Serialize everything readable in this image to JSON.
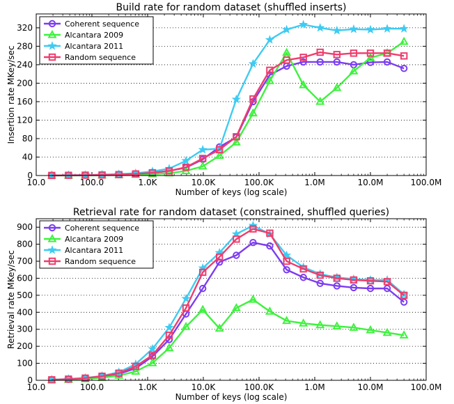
{
  "chart_data": [
    {
      "type": "line",
      "title": "Build rate for random dataset (shuffled inserts)",
      "xlabel": "Number of keys (log scale)",
      "ylabel": "Insertion rate MKey/sec",
      "xscale": "log",
      "xlim": [
        10,
        100000000
      ],
      "ylim": [
        0,
        350
      ],
      "xticks": [
        10,
        100,
        1000,
        10000,
        100000,
        1000000,
        10000000,
        100000000
      ],
      "xtick_labels": [
        "10.0",
        "100.0",
        "1.0K",
        "10.0K",
        "100.0K",
        "1.0M",
        "10.0M",
        "100.0M"
      ],
      "yticks": [
        0,
        40,
        80,
        120,
        160,
        200,
        240,
        280,
        320
      ],
      "ytick_labels": [
        "0",
        "40",
        "80",
        "120",
        "160",
        "200",
        "240",
        "280",
        "320"
      ],
      "grid": "horizontal dotted",
      "legend_position": "top-left",
      "x": [
        19,
        38,
        76,
        152,
        305,
        610,
        1220,
        2440,
        4880,
        9770,
        19500,
        39100,
        78100,
        156000,
        313000,
        625000,
        1250000,
        2500000,
        5000000,
        10000000,
        20000000,
        40000000
      ],
      "series": [
        {
          "name": "Coherent sequence",
          "color": "#7b3cf0",
          "marker": "circle",
          "values": [
            0.2,
            0.4,
            0.6,
            1,
            2,
            3.5,
            6,
            10,
            17,
            35,
            62,
            83,
            160,
            218,
            237,
            246,
            246,
            246,
            240,
            245,
            246,
            232
          ]
        },
        {
          "name": "Alcantara 2009",
          "color": "#3ef23e",
          "marker": "triangle",
          "values": [
            0.1,
            0.2,
            0.3,
            0.5,
            1,
            2,
            3,
            5,
            10,
            20,
            43,
            72,
            135,
            205,
            266,
            196,
            160,
            190,
            226,
            255,
            265,
            290
          ]
        },
        {
          "name": "Alcantara 2011",
          "color": "#3ecbf2",
          "marker": "star",
          "values": [
            0.3,
            0.6,
            1,
            2,
            3,
            5,
            9,
            15,
            32,
            56,
            58,
            165,
            242,
            294,
            316,
            327,
            320,
            314,
            317,
            316,
            318,
            318
          ]
        },
        {
          "name": "Random sequence",
          "color": "#ee3d6d",
          "marker": "square",
          "values": [
            0.2,
            0.5,
            0.8,
            1.2,
            2,
            3.5,
            6,
            10,
            18,
            37,
            56,
            84,
            166,
            228,
            250,
            256,
            267,
            262,
            265,
            265,
            265,
            259
          ]
        }
      ]
    },
    {
      "type": "line",
      "title": "Retrieval rate for random dataset (constrained, shuffled queries)",
      "xlabel": "Number of keys (log scale)",
      "ylabel": "Retrieval rate MKey/sec",
      "xscale": "log",
      "xlim": [
        10,
        100000000
      ],
      "ylim": [
        0,
        950
      ],
      "xticks": [
        10,
        100,
        1000,
        10000,
        100000,
        1000000,
        10000000,
        100000000
      ],
      "xtick_labels": [
        "10.0",
        "100.0",
        "1.0K",
        "10.0K",
        "100.0K",
        "1.0M",
        "10.0M",
        "100.0M"
      ],
      "yticks": [
        0,
        100,
        200,
        300,
        400,
        500,
        600,
        700,
        800,
        900
      ],
      "ytick_labels": [
        "0",
        "100",
        "200",
        "300",
        "400",
        "500",
        "600",
        "700",
        "800",
        "900"
      ],
      "grid": "horizontal dotted",
      "legend_position": "top-left",
      "x": [
        19,
        38,
        76,
        152,
        305,
        610,
        1220,
        2440,
        4880,
        9770,
        19500,
        39100,
        78100,
        156000,
        313000,
        625000,
        1250000,
        2500000,
        5000000,
        10000000,
        20000000,
        40000000
      ],
      "series": [
        {
          "name": "Coherent sequence",
          "color": "#7b3cf0",
          "marker": "circle",
          "values": [
            3,
            6,
            12,
            22,
            38,
            70,
            140,
            240,
            390,
            540,
            695,
            735,
            810,
            790,
            650,
            605,
            570,
            555,
            545,
            540,
            540,
            460
          ]
        },
        {
          "name": "Alcantara 2009",
          "color": "#3ef23e",
          "marker": "triangle",
          "values": [
            2,
            4,
            8,
            15,
            28,
            52,
            102,
            190,
            315,
            415,
            305,
            425,
            475,
            405,
            350,
            335,
            325,
            318,
            310,
            295,
            280,
            265
          ]
        },
        {
          "name": "Alcantara 2011",
          "color": "#3ecbf2",
          "marker": "star",
          "values": [
            4,
            8,
            14,
            26,
            48,
            95,
            185,
            310,
            480,
            660,
            750,
            860,
            910,
            860,
            735,
            665,
            625,
            605,
            595,
            590,
            590,
            505
          ]
        },
        {
          "name": "Random sequence",
          "color": "#ee3d6d",
          "marker": "square",
          "values": [
            3,
            7,
            13,
            24,
            42,
            82,
            148,
            265,
            425,
            635,
            725,
            830,
            890,
            865,
            700,
            655,
            618,
            600,
            590,
            585,
            580,
            500
          ]
        }
      ]
    }
  ]
}
